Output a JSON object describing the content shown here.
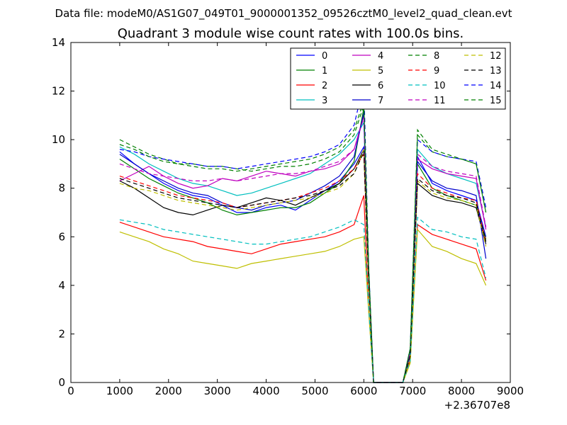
{
  "figure": {
    "suptitle": "Data file: modeM0/AS1G07_049T01_9000001352_09526cztM0_level2_quad_clean.evt"
  },
  "chart_data": {
    "type": "line",
    "title": "Quadrant 3 module wise count rates with 100.0s bins.",
    "xlabel": "",
    "ylabel": "",
    "xlim": [
      0,
      9000
    ],
    "ylim": [
      0,
      14
    ],
    "x_offset_label": "+2.36707e8",
    "x_ticks": [
      0,
      1000,
      2000,
      3000,
      4000,
      5000,
      6000,
      7000,
      8000,
      9000
    ],
    "x_tick_labels": [
      "0",
      "1000",
      "2000",
      "3000",
      "4000",
      "5000",
      "6000",
      "7000",
      "8000",
      "9000"
    ],
    "y_ticks": [
      0,
      2,
      4,
      6,
      8,
      10,
      12,
      14
    ],
    "y_tick_labels": [
      "0",
      "2",
      "4",
      "6",
      "8",
      "10",
      "12",
      "14"
    ],
    "grid": false,
    "legend_position": "top-right",
    "x": [
      1000,
      1300,
      1600,
      1900,
      2200,
      2500,
      2800,
      3100,
      3400,
      3700,
      4000,
      4300,
      4600,
      4900,
      5200,
      5500,
      5800,
      6000,
      6100,
      6200,
      6500,
      6800,
      6950,
      7100,
      7400,
      7700,
      8000,
      8300,
      8500
    ],
    "series": [
      {
        "name": "0",
        "color": "#0000ff",
        "dash": false,
        "values": [
          9.5,
          9.0,
          8.6,
          8.2,
          7.9,
          7.7,
          7.6,
          7.3,
          7.0,
          7.0,
          7.2,
          7.3,
          7.1,
          7.5,
          7.9,
          8.3,
          9.0,
          9.7,
          4.5,
          0.0,
          0.0,
          0.0,
          1.2,
          9.3,
          8.2,
          7.9,
          7.7,
          7.5,
          6.0
        ]
      },
      {
        "name": "1",
        "color": "#008000",
        "dash": false,
        "values": [
          9.2,
          8.8,
          8.4,
          8.1,
          7.8,
          7.6,
          7.4,
          7.1,
          6.9,
          7.0,
          7.1,
          7.2,
          7.2,
          7.4,
          7.8,
          8.2,
          9.1,
          11.3,
          4.3,
          0.0,
          0.0,
          0.0,
          1.1,
          9.0,
          8.0,
          7.7,
          7.5,
          7.3,
          5.9
        ]
      },
      {
        "name": "2",
        "color": "#ff0000",
        "dash": false,
        "values": [
          6.6,
          6.4,
          6.2,
          6.0,
          5.9,
          5.8,
          5.6,
          5.5,
          5.4,
          5.3,
          5.5,
          5.7,
          5.8,
          5.9,
          6.0,
          6.2,
          6.5,
          7.7,
          3.0,
          0.0,
          0.0,
          0.0,
          0.9,
          6.5,
          6.1,
          5.9,
          5.7,
          5.5,
          4.2
        ]
      },
      {
        "name": "3",
        "color": "#00bfbf",
        "dash": false,
        "values": [
          9.7,
          9.4,
          9.0,
          8.7,
          8.4,
          8.2,
          8.1,
          7.9,
          7.7,
          7.8,
          8.0,
          8.2,
          8.4,
          8.6,
          9.0,
          9.4,
          10.0,
          10.7,
          4.6,
          0.0,
          0.0,
          0.0,
          1.3,
          9.6,
          8.9,
          8.6,
          8.4,
          8.2,
          6.4
        ]
      },
      {
        "name": "4",
        "color": "#bf00bf",
        "dash": false,
        "values": [
          8.3,
          8.6,
          8.9,
          8.5,
          8.2,
          8.0,
          8.1,
          8.4,
          8.3,
          8.5,
          8.7,
          8.6,
          8.5,
          8.7,
          8.8,
          9.0,
          9.6,
          11.0,
          4.4,
          0.0,
          0.0,
          0.0,
          1.2,
          9.2,
          8.8,
          8.6,
          8.5,
          8.4,
          6.3
        ]
      },
      {
        "name": "5",
        "color": "#bfbf00",
        "dash": false,
        "values": [
          6.2,
          6.0,
          5.8,
          5.5,
          5.3,
          5.0,
          4.9,
          4.8,
          4.7,
          4.9,
          5.0,
          5.1,
          5.2,
          5.3,
          5.4,
          5.6,
          5.9,
          6.0,
          2.9,
          0.0,
          0.0,
          0.0,
          0.8,
          6.3,
          5.6,
          5.4,
          5.1,
          4.9,
          4.0
        ]
      },
      {
        "name": "6",
        "color": "#000000",
        "dash": false,
        "values": [
          8.3,
          8.0,
          7.6,
          7.2,
          7.0,
          6.9,
          7.1,
          7.3,
          7.2,
          7.4,
          7.6,
          7.5,
          7.3,
          7.6,
          7.9,
          8.2,
          8.8,
          9.6,
          4.2,
          0.0,
          0.0,
          0.0,
          1.1,
          8.2,
          7.7,
          7.5,
          7.4,
          7.2,
          5.7
        ]
      },
      {
        "name": "7",
        "color": "#0000cc",
        "dash": false,
        "values": [
          9.4,
          9.0,
          8.6,
          8.3,
          8.0,
          7.8,
          7.7,
          7.4,
          7.2,
          7.1,
          7.3,
          7.4,
          7.5,
          7.8,
          8.1,
          8.5,
          9.3,
          11.1,
          4.5,
          0.0,
          0.0,
          0.0,
          1.2,
          9.1,
          8.3,
          8.0,
          7.9,
          7.7,
          5.1
        ]
      },
      {
        "name": "8",
        "color": "#008000",
        "dash": true,
        "values": [
          10.0,
          9.7,
          9.4,
          9.2,
          9.0,
          9.0,
          8.9,
          8.9,
          8.8,
          8.7,
          8.8,
          8.9,
          8.9,
          9.0,
          9.2,
          9.5,
          10.2,
          11.4,
          4.7,
          0.0,
          0.0,
          0.0,
          1.4,
          10.2,
          9.5,
          9.3,
          9.2,
          9.0,
          7.0
        ]
      },
      {
        "name": "9",
        "color": "#ff0000",
        "dash": true,
        "values": [
          8.5,
          8.3,
          8.1,
          7.9,
          7.7,
          7.6,
          7.5,
          7.4,
          7.2,
          7.3,
          7.4,
          7.5,
          7.6,
          7.8,
          8.0,
          8.3,
          8.8,
          9.4,
          4.2,
          0.0,
          0.0,
          0.0,
          1.1,
          8.6,
          8.0,
          7.8,
          7.6,
          7.5,
          5.8
        ]
      },
      {
        "name": "10",
        "color": "#00bfbf",
        "dash": true,
        "values": [
          6.7,
          6.6,
          6.5,
          6.3,
          6.2,
          6.1,
          6.0,
          5.9,
          5.8,
          5.7,
          5.7,
          5.8,
          5.9,
          6.0,
          6.2,
          6.4,
          6.7,
          6.5,
          3.1,
          0.0,
          0.0,
          0.0,
          0.9,
          6.8,
          6.3,
          6.2,
          6.0,
          5.9,
          4.3
        ]
      },
      {
        "name": "11",
        "color": "#bf00bf",
        "dash": true,
        "values": [
          9.0,
          8.8,
          8.6,
          8.5,
          8.4,
          8.3,
          8.3,
          8.4,
          8.3,
          8.4,
          8.5,
          8.6,
          8.6,
          8.7,
          8.9,
          9.1,
          9.6,
          10.9,
          4.5,
          0.0,
          0.0,
          0.0,
          1.2,
          9.4,
          8.9,
          8.7,
          8.6,
          8.5,
          6.4
        ]
      },
      {
        "name": "12",
        "color": "#bfbf00",
        "dash": true,
        "values": [
          8.2,
          8.0,
          7.9,
          7.7,
          7.5,
          7.4,
          7.3,
          7.2,
          7.1,
          7.2,
          7.3,
          7.4,
          7.5,
          7.6,
          7.8,
          8.0,
          8.6,
          9.6,
          4.0,
          0.0,
          0.0,
          0.0,
          1.0,
          8.3,
          7.8,
          7.6,
          7.5,
          7.3,
          5.6
        ]
      },
      {
        "name": "13",
        "color": "#000000",
        "dash": true,
        "values": [
          8.4,
          8.2,
          8.0,
          7.8,
          7.6,
          7.5,
          7.4,
          7.3,
          7.2,
          7.3,
          7.4,
          7.5,
          7.6,
          7.7,
          7.9,
          8.1,
          8.6,
          9.5,
          4.1,
          0.0,
          0.0,
          0.0,
          1.1,
          8.4,
          7.9,
          7.7,
          7.6,
          7.4,
          5.8
        ]
      },
      {
        "name": "14",
        "color": "#0000ff",
        "dash": true,
        "values": [
          9.6,
          9.5,
          9.3,
          9.2,
          9.1,
          9.0,
          8.9,
          8.9,
          8.8,
          8.9,
          9.0,
          9.1,
          9.2,
          9.3,
          9.5,
          9.8,
          10.6,
          12.3,
          4.8,
          0.0,
          0.0,
          0.0,
          1.4,
          10.0,
          9.5,
          9.3,
          9.2,
          9.1,
          7.2
        ]
      },
      {
        "name": "15",
        "color": "#008000",
        "dash": true,
        "values": [
          9.8,
          9.6,
          9.3,
          9.1,
          9.0,
          8.9,
          8.8,
          8.8,
          8.7,
          8.8,
          8.9,
          9.0,
          9.1,
          9.2,
          9.4,
          9.7,
          10.4,
          11.6,
          4.7,
          0.0,
          0.0,
          0.0,
          1.4,
          10.4,
          9.6,
          9.4,
          9.2,
          9.0,
          7.0
        ]
      }
    ]
  }
}
